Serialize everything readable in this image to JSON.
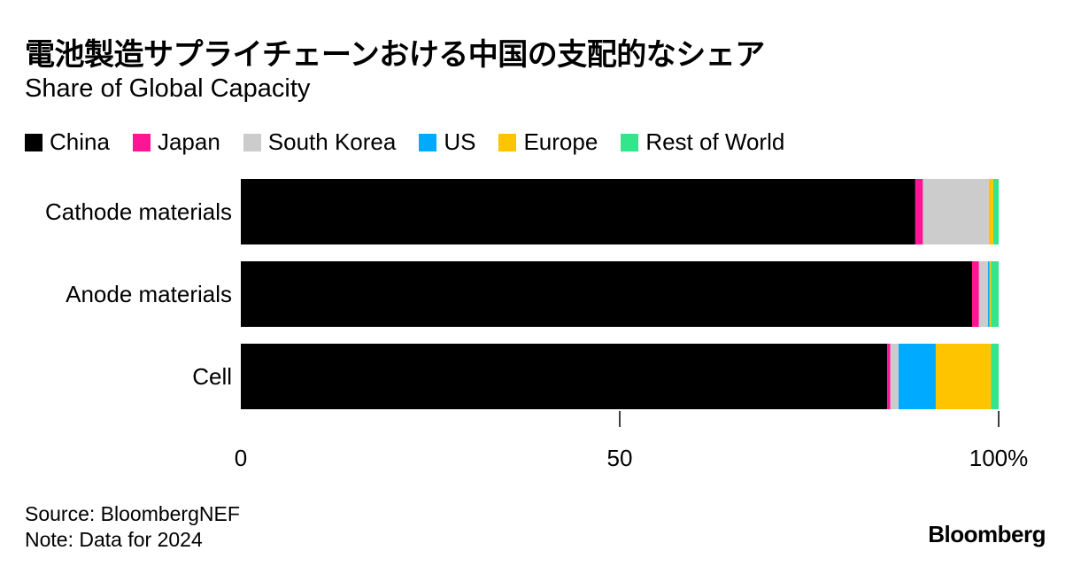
{
  "header": {
    "title": "電池製造サプライチェーンおける中国の支配的なシェア",
    "subtitle": "Share of Global Capacity"
  },
  "chart_data": {
    "type": "bar",
    "orientation": "horizontal",
    "stacked": true,
    "categories": [
      "Cathode materials",
      "Anode materials",
      "Cell"
    ],
    "series": [
      {
        "name": "China",
        "color": "#000000",
        "values": [
          89,
          96.5,
          85.3
        ]
      },
      {
        "name": "Japan",
        "color": "#ff1493",
        "values": [
          1,
          0.9,
          0.4
        ]
      },
      {
        "name": "South Korea",
        "color": "#cccccc",
        "values": [
          8.7,
          1.2,
          1.1
        ]
      },
      {
        "name": "US",
        "color": "#00aaff",
        "values": [
          0,
          0.2,
          4.9
        ]
      },
      {
        "name": "Europe",
        "color": "#ffc400",
        "values": [
          0.6,
          0.2,
          7.3
        ]
      },
      {
        "name": "Rest of World",
        "color": "#33e68c",
        "values": [
          0.7,
          1.0,
          1.0
        ]
      }
    ],
    "xlim": [
      0,
      100
    ],
    "ticks": [
      "0",
      "50",
      "100%"
    ],
    "tick_values": [
      0,
      50,
      100
    ],
    "legend_position": "top-left",
    "grid": false
  },
  "footer": {
    "source": "Source: BloombergNEF",
    "note": "Note: Data for 2024",
    "brand": "Bloomberg"
  }
}
